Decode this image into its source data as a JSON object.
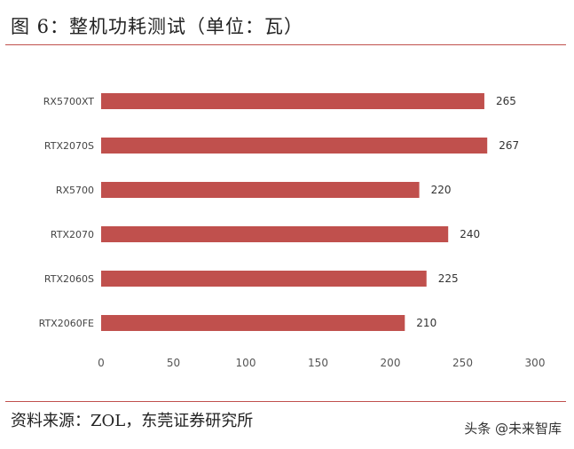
{
  "title": "图 6：整机功耗测试（单位：瓦）",
  "source": "资料来源：ZOL，东莞证券研究所",
  "watermark": "头条 @未来智库",
  "colors": {
    "bar": "#c0504d",
    "rule": "#c0504d"
  },
  "chart_data": {
    "type": "bar",
    "orientation": "horizontal",
    "categories": [
      "RX5700XT",
      "RTX2070S",
      "RX5700",
      "RTX2070",
      "RTX2060S",
      "RTX2060FE"
    ],
    "values": [
      265,
      267,
      220,
      240,
      225,
      210
    ],
    "xlim": [
      0,
      300
    ],
    "xticks": [
      0,
      50,
      100,
      150,
      200,
      250,
      300
    ],
    "grid": false,
    "legend": "none"
  }
}
